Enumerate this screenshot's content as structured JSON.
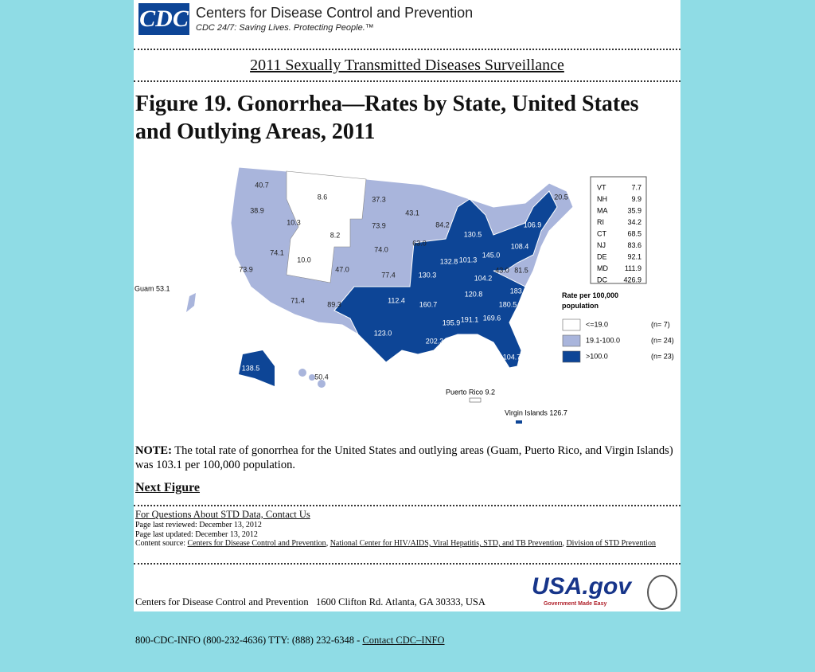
{
  "header": {
    "logo": "CDC",
    "org": "Centers for Disease Control and Prevention",
    "tagline": "CDC 24/7: Saving Lives. Protecting People.™"
  },
  "page_title": "2011 Sexually Transmitted Diseases Surveillance",
  "figure_title": "Figure 19. Gonorrhea—Rates by State, United States and Outlying Areas, 2011",
  "map": {
    "labels": [
      "40.7",
      "8.6",
      "37.3",
      "43.1",
      "84.2",
      "20.5",
      "38.9",
      "10.3",
      "73.9",
      "8.2",
      "63.0",
      "130.5",
      "106.9",
      "108.4",
      "74.1",
      "10.0",
      "74.0",
      "132.8",
      "101.3",
      "145.0",
      "73.9",
      "47.0",
      "77.4",
      "130.3",
      "104.2",
      "43.0",
      "81.5",
      "112.4",
      "160.7",
      "120.8",
      "183.0",
      "71.4",
      "89.3",
      "180.5",
      "195.9",
      "191.1",
      "169.6",
      "123.0",
      "202.3",
      "104.7",
      "138.5",
      "50.4"
    ],
    "outlying": [
      "Guam 53.1",
      "Puerto Rico 9.2",
      "Virgin Islands 126.7"
    ],
    "small_states": [
      [
        "VT",
        "7.7"
      ],
      [
        "NH",
        "9.9"
      ],
      [
        "MA",
        "35.9"
      ],
      [
        "RI",
        "34.2"
      ],
      [
        "CT",
        "68.5"
      ],
      [
        "NJ",
        "83.6"
      ],
      [
        "DE",
        "92.1"
      ],
      [
        "MD",
        "111.9"
      ],
      [
        "DC",
        "426.9"
      ]
    ],
    "legend": {
      "title": "Rate per 100,000 population",
      "items": [
        {
          "range": "<=19.0",
          "count": "(n= 7)",
          "color": "#ffffff"
        },
        {
          "range": "19.1-100.0",
          "count": "(n= 24)",
          "color": "#a9b5dc"
        },
        {
          "range": ">100.0",
          "count": "(n= 23)",
          "color": "#0d4596"
        }
      ]
    }
  },
  "note": {
    "label": "NOTE:",
    "text": "The total rate of gonorrhea for the United States and outlying areas (Guam, Puerto Rico, and Virgin Islands) was 103.1 per 100,000 population."
  },
  "next_figure": "Next Figure",
  "footer": {
    "contact": "For Questions About STD Data, Contact Us",
    "reviewed": "Page last reviewed: December 13, 2012",
    "updated": "Page last updated: December 13, 2012",
    "content_source": "Content source:",
    "links": [
      "Centers for Disease Control and Prevention",
      "National Center for HIV/AIDS, Viral Hepatitis, STD, and TB Prevention",
      "Division of STD Prevention"
    ],
    "separator": ","
  },
  "address": {
    "line1": "Centers for Disease Control and Prevention   1600 Clifton Rd. Atlanta, GA 30333, USA",
    "line2": "800-CDC-INFO (800-232-4636) TTY: (888) 232-6348 -",
    "contact_link": "Contact CDC–INFO"
  },
  "usa_gov": {
    "logo": "USA.gov",
    "tagline": "Government Made Easy"
  }
}
